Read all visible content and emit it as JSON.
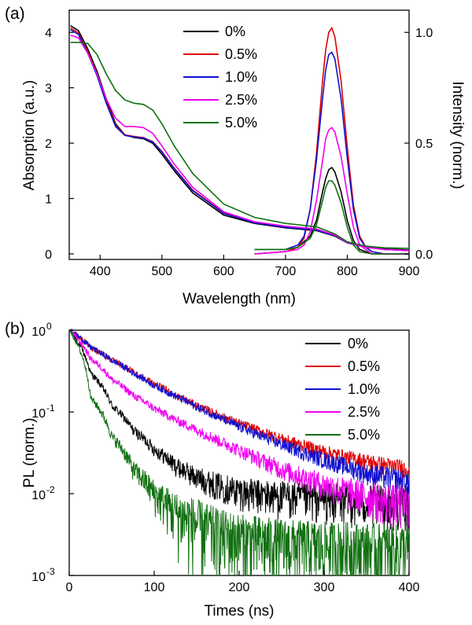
{
  "chart_data": [
    {
      "panel_label": "(a)",
      "type": "line",
      "xlabel": "Wavelength (nm)",
      "ylabel": "Absorption (a.u.)",
      "y2label": "Intensity (norm.)",
      "xlim": [
        350,
        900
      ],
      "ylim": [
        -0.1,
        4.4
      ],
      "y2lim": [
        -0.025,
        1.1
      ],
      "xticks": [
        "400",
        "500",
        "600",
        "700",
        "800",
        "900"
      ],
      "yticks": [
        "0",
        "1",
        "2",
        "3",
        "4"
      ],
      "y2ticks": [
        "0.0",
        "0.5",
        "1.0"
      ],
      "legend_position": "top-center",
      "series": [
        {
          "name": "0%",
          "color": "#000000",
          "absorption": {
            "x": [
              352,
              365,
              380,
              395,
              410,
              425,
              440,
              455,
              470,
              485,
              500,
              520,
              550,
              600,
              650,
              700,
              750,
              780,
              800,
              830,
              860,
              900
            ],
            "y": [
              4.12,
              4.03,
              3.7,
              3.3,
              2.8,
              2.35,
              2.15,
              2.1,
              2.08,
              2.0,
              1.8,
              1.5,
              1.1,
              0.7,
              0.55,
              0.47,
              0.42,
              0.32,
              0.2,
              0.12,
              0.09,
              0.07
            ]
          },
          "emission": {
            "x": [
              650,
              700,
              720,
              740,
              750,
              760,
              765,
              770,
              775,
              780,
              790,
              800,
              810,
              820,
              840,
              900
            ],
            "y": [
              0.0,
              0.01,
              0.03,
              0.08,
              0.15,
              0.28,
              0.34,
              0.38,
              0.39,
              0.37,
              0.28,
              0.15,
              0.06,
              0.02,
              0.0,
              0.0
            ]
          }
        },
        {
          "name": "0.5%",
          "color": "#e00000",
          "absorption": {
            "x": [
              352,
              365,
              380,
              395,
              410,
              425,
              440,
              455,
              470,
              485,
              500,
              520,
              550,
              600,
              650,
              700,
              750,
              780,
              800,
              830,
              860,
              900
            ],
            "y": [
              4.08,
              3.99,
              3.65,
              3.25,
              2.75,
              2.32,
              2.15,
              2.12,
              2.1,
              2.03,
              1.85,
              1.55,
              1.15,
              0.74,
              0.57,
              0.49,
              0.44,
              0.33,
              0.2,
              0.12,
              0.08,
              0.06
            ]
          },
          "emission": {
            "x": [
              650,
              700,
              720,
              730,
              740,
              750,
              760,
              765,
              770,
              775,
              780,
              790,
              800,
              810,
              820,
              830,
              840,
              860,
              900
            ],
            "y": [
              0.0,
              0.01,
              0.03,
              0.07,
              0.2,
              0.45,
              0.78,
              0.92,
              1.0,
              1.02,
              0.98,
              0.78,
              0.48,
              0.22,
              0.08,
              0.03,
              0.01,
              0.0,
              0.0
            ]
          }
        },
        {
          "name": "1.0%",
          "color": "#1010d0",
          "absorption": {
            "x": [
              352,
              365,
              380,
              395,
              410,
              425,
              440,
              455,
              470,
              485,
              500,
              520,
              550,
              600,
              650,
              700,
              750,
              780,
              800,
              830,
              860,
              900
            ],
            "y": [
              4.05,
              3.96,
              3.62,
              3.22,
              2.72,
              2.3,
              2.14,
              2.11,
              2.09,
              2.02,
              1.84,
              1.54,
              1.14,
              0.73,
              0.56,
              0.48,
              0.43,
              0.33,
              0.2,
              0.12,
              0.08,
              0.06
            ]
          },
          "emission": {
            "x": [
              650,
              700,
              720,
              730,
              740,
              750,
              760,
              765,
              770,
              775,
              780,
              790,
              800,
              810,
              820,
              830,
              840,
              860,
              900
            ],
            "y": [
              0.02,
              0.02,
              0.04,
              0.08,
              0.2,
              0.42,
              0.7,
              0.83,
              0.9,
              0.91,
              0.88,
              0.7,
              0.43,
              0.2,
              0.07,
              0.03,
              0.01,
              0.0,
              0.0
            ]
          }
        },
        {
          "name": "2.5%",
          "color": "#f000f0",
          "absorption": {
            "x": [
              352,
              365,
              380,
              395,
              410,
              425,
              440,
              455,
              470,
              485,
              500,
              520,
              550,
              600,
              650,
              700,
              750,
              780,
              800,
              830,
              860,
              900
            ],
            "y": [
              3.95,
              3.9,
              3.62,
              3.25,
              2.8,
              2.45,
              2.3,
              2.3,
              2.28,
              2.18,
              1.95,
              1.62,
              1.2,
              0.76,
              0.58,
              0.5,
              0.45,
              0.34,
              0.21,
              0.12,
              0.08,
              0.06
            ]
          },
          "emission": {
            "x": [
              650,
              700,
              720,
              730,
              740,
              750,
              760,
              765,
              770,
              775,
              780,
              790,
              800,
              810,
              820,
              830,
              840,
              860,
              900
            ],
            "y": [
              0.0,
              0.01,
              0.02,
              0.04,
              0.1,
              0.24,
              0.42,
              0.52,
              0.56,
              0.57,
              0.55,
              0.44,
              0.27,
              0.12,
              0.04,
              0.02,
              0.0,
              0.0,
              0.0
            ]
          }
        },
        {
          "name": "5.0%",
          "color": "#107010",
          "absorption": {
            "x": [
              352,
              365,
              380,
              395,
              410,
              425,
              440,
              455,
              470,
              485,
              500,
              520,
              550,
              600,
              650,
              700,
              750,
              780,
              800,
              830,
              860,
              900
            ],
            "y": [
              3.82,
              3.82,
              3.8,
              3.6,
              3.25,
              2.95,
              2.78,
              2.72,
              2.7,
              2.6,
              2.35,
              1.95,
              1.45,
              0.9,
              0.66,
              0.55,
              0.49,
              0.36,
              0.22,
              0.14,
              0.11,
              0.1
            ]
          },
          "emission": {
            "x": [
              650,
              700,
              720,
              740,
              750,
              760,
              765,
              770,
              775,
              780,
              790,
              800,
              810,
              820,
              840,
              900
            ],
            "y": [
              0.02,
              0.02,
              0.03,
              0.07,
              0.13,
              0.24,
              0.3,
              0.33,
              0.33,
              0.31,
              0.23,
              0.12,
              0.04,
              0.01,
              0.0,
              0.0
            ]
          }
        }
      ]
    },
    {
      "panel_label": "(b)",
      "type": "line",
      "xlabel": "Times (ns)",
      "ylabel": "PL (norm.)",
      "xlim": [
        0,
        400
      ],
      "ylim": [
        0.001,
        1.0
      ],
      "yscale": "log",
      "xticks": [
        "0",
        "100",
        "200",
        "300",
        "400"
      ],
      "yticks": [
        {
          "base": "10",
          "exp": "0"
        },
        {
          "base": "10",
          "exp": "-1"
        },
        {
          "base": "10",
          "exp": "-2"
        },
        {
          "base": "10",
          "exp": "-3"
        }
      ],
      "legend_position": "top-right",
      "series": [
        {
          "name": "0%",
          "color": "#000000",
          "x": [
            0,
            25,
            50,
            75,
            100,
            125,
            150,
            175,
            200,
            225,
            250,
            275,
            300,
            325,
            350,
            375,
            400
          ],
          "y": [
            1.0,
            0.3,
            0.12,
            0.06,
            0.035,
            0.022,
            0.016,
            0.013,
            0.011,
            0.01,
            0.0095,
            0.009,
            0.0088,
            0.0085,
            0.0082,
            0.008,
            0.0078
          ]
        },
        {
          "name": "0.5%",
          "color": "#e00000",
          "x": [
            0,
            25,
            50,
            75,
            100,
            125,
            150,
            175,
            200,
            225,
            250,
            275,
            300,
            325,
            350,
            375,
            400
          ],
          "y": [
            1.0,
            0.62,
            0.43,
            0.31,
            0.22,
            0.16,
            0.12,
            0.092,
            0.072,
            0.058,
            0.047,
            0.039,
            0.033,
            0.028,
            0.025,
            0.022,
            0.02
          ]
        },
        {
          "name": "1.0%",
          "color": "#1010d0",
          "x": [
            0,
            25,
            50,
            75,
            100,
            125,
            150,
            175,
            200,
            225,
            250,
            275,
            300,
            325,
            350,
            375,
            400
          ],
          "y": [
            1.0,
            0.62,
            0.43,
            0.3,
            0.21,
            0.155,
            0.115,
            0.087,
            0.066,
            0.051,
            0.04,
            0.032,
            0.026,
            0.022,
            0.018,
            0.016,
            0.014
          ]
        },
        {
          "name": "2.5%",
          "color": "#f000f0",
          "x": [
            0,
            25,
            50,
            75,
            100,
            125,
            150,
            175,
            200,
            225,
            250,
            275,
            300,
            325,
            350,
            375,
            400
          ],
          "y": [
            1.0,
            0.45,
            0.25,
            0.16,
            0.11,
            0.08,
            0.06,
            0.045,
            0.034,
            0.026,
            0.02,
            0.016,
            0.013,
            0.011,
            0.0095,
            0.0085,
            0.0075
          ]
        },
        {
          "name": "5.0%",
          "color": "#107010",
          "x": [
            0,
            25,
            50,
            75,
            100,
            125,
            150,
            175,
            200,
            225,
            250,
            275,
            300,
            325,
            350,
            375,
            400
          ],
          "y": [
            1.0,
            0.15,
            0.05,
            0.02,
            0.01,
            0.006,
            0.0045,
            0.0035,
            0.003,
            0.0028,
            0.0026,
            0.0025,
            0.0024,
            0.0024,
            0.0023,
            0.0023,
            0.0022
          ]
        }
      ]
    }
  ]
}
